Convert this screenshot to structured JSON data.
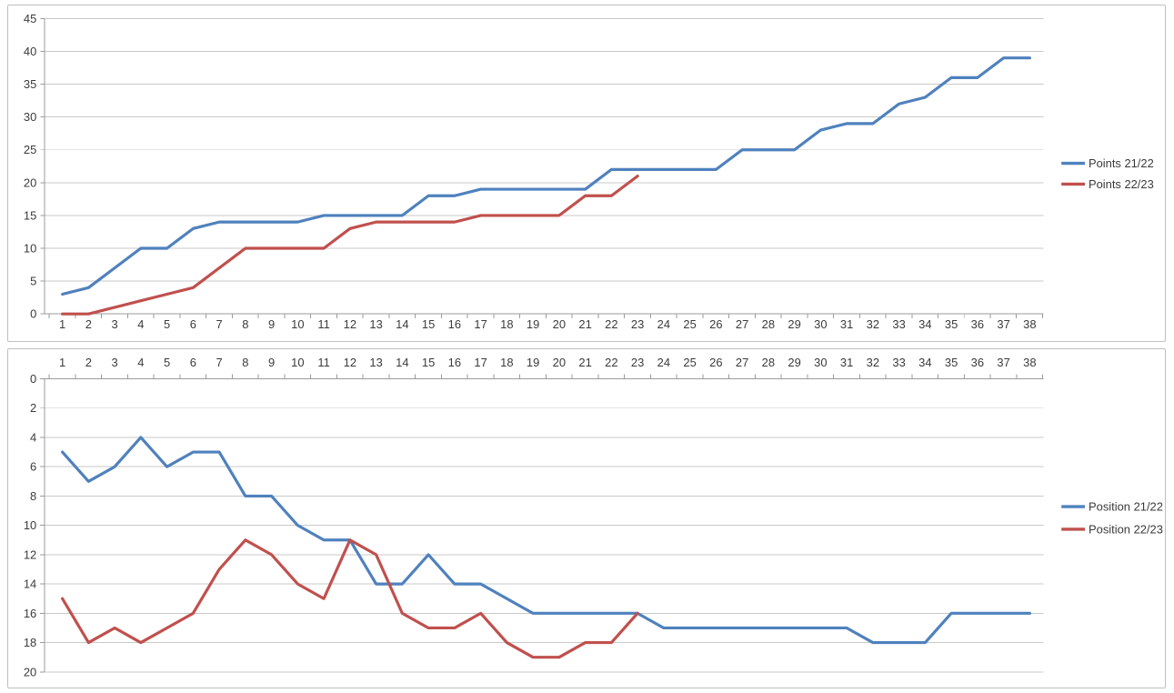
{
  "window": {
    "description": "Excel-style worksheet with two embedded line charts comparing two football seasons week by week"
  },
  "colors": {
    "season_21_22": "#4F81BD",
    "season_22_23": "#C0504D",
    "gridline": "#c9c9c9",
    "axis": "#9b9b9b",
    "text": "#3b3b3b",
    "chart_border": "#bfbfbf",
    "background": "#FFFFFF"
  },
  "chart_data": [
    {
      "name": "points-by-week",
      "type": "line",
      "title": "",
      "x_categories": [
        1,
        2,
        3,
        4,
        5,
        6,
        7,
        8,
        9,
        10,
        11,
        12,
        13,
        14,
        15,
        16,
        17,
        18,
        19,
        20,
        21,
        22,
        23,
        24,
        25,
        26,
        27,
        28,
        29,
        30,
        31,
        32,
        33,
        34,
        35,
        36,
        37,
        38
      ],
      "x_axis": {
        "labels_position": "bottom"
      },
      "y_axis": {
        "min": 0,
        "max": 45,
        "step": 5,
        "inverted": false
      },
      "grid": true,
      "legend": {
        "position": "right",
        "entries": [
          "Points 21/22",
          "Points 22/23"
        ]
      },
      "series": [
        {
          "name": "Points 21/22",
          "color": "#4F81BD",
          "values": [
            3,
            4,
            7,
            10,
            10,
            13,
            14,
            14,
            14,
            14,
            15,
            15,
            15,
            15,
            18,
            18,
            19,
            19,
            19,
            19,
            19,
            22,
            22,
            22,
            22,
            22,
            25,
            25,
            25,
            28,
            29,
            29,
            32,
            33,
            36,
            36,
            39,
            39
          ]
        },
        {
          "name": "Points 22/23",
          "color": "#C0504D",
          "values": [
            0,
            0,
            1,
            2,
            3,
            4,
            7,
            10,
            10,
            10,
            10,
            13,
            14,
            14,
            14,
            14,
            15,
            15,
            15,
            15,
            18,
            18,
            21
          ]
        }
      ]
    },
    {
      "name": "position-by-week",
      "type": "line",
      "title": "",
      "x_categories": [
        1,
        2,
        3,
        4,
        5,
        6,
        7,
        8,
        9,
        10,
        11,
        12,
        13,
        14,
        15,
        16,
        17,
        18,
        19,
        20,
        21,
        22,
        23,
        24,
        25,
        26,
        27,
        28,
        29,
        30,
        31,
        32,
        33,
        34,
        35,
        36,
        37,
        38
      ],
      "x_axis": {
        "labels_position": "top"
      },
      "y_axis": {
        "min": 0,
        "max": 20,
        "step": 2,
        "inverted": true
      },
      "grid": true,
      "legend": {
        "position": "right",
        "entries": [
          "Position 21/22",
          "Position 22/23"
        ]
      },
      "series": [
        {
          "name": "Position 21/22",
          "color": "#4F81BD",
          "values": [
            5,
            7,
            6,
            4,
            6,
            5,
            5,
            8,
            8,
            10,
            11,
            11,
            14,
            14,
            12,
            14,
            14,
            15,
            16,
            16,
            16,
            16,
            16,
            17,
            17,
            17,
            17,
            17,
            17,
            17,
            17,
            18,
            18,
            18,
            16,
            16,
            16,
            16
          ]
        },
        {
          "name": "Position 22/23",
          "color": "#C0504D",
          "values": [
            15,
            18,
            17,
            18,
            17,
            16,
            13,
            11,
            12,
            14,
            15,
            11,
            12,
            16,
            17,
            17,
            16,
            18,
            19,
            19,
            18,
            18,
            16
          ]
        }
      ]
    }
  ]
}
